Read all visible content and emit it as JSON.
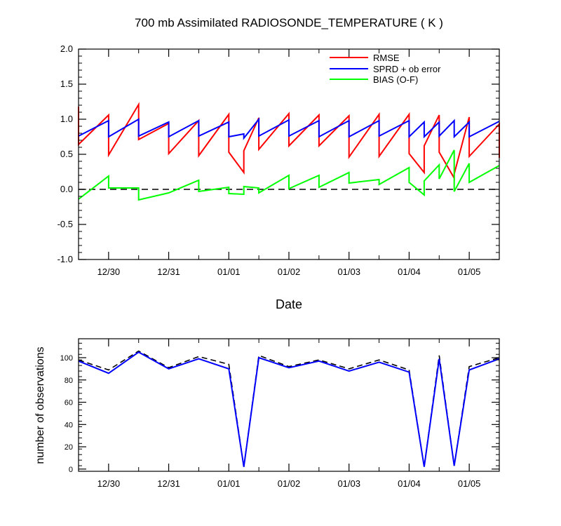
{
  "colors": {
    "rmse": "#ff0000",
    "sprd": "#0000ff",
    "bias": "#00ff00",
    "obs_used": "#0000ff",
    "obs_possible": "#000000",
    "zero_line": "#000000"
  },
  "chart_data": [
    {
      "type": "line",
      "title": "700 mb Assimilated RADIOSONDE_TEMPERATURE ( K )",
      "xlabel": "Date",
      "ylabel": "",
      "x_ticks": [
        "12/30",
        "12/31",
        "01/01",
        "01/02",
        "01/03",
        "01/04",
        "01/05"
      ],
      "x_tick_pos": [
        1,
        2,
        3,
        4,
        5,
        6,
        7
      ],
      "xlim": [
        0.5,
        7.5
      ],
      "ylim": [
        -1.0,
        2.0
      ],
      "y_ticks": [
        "-1.0",
        "-0.5",
        "0.0",
        "0.5",
        "1.0",
        "1.5",
        "2.0"
      ],
      "y_tick_vals": [
        -1.0,
        -0.5,
        0.0,
        0.5,
        1.0,
        1.5,
        2.0
      ],
      "reference_line": {
        "y": 0.0,
        "style": "dashed"
      },
      "legend_position": "top-right",
      "series": [
        {
          "name": "RMSE",
          "color_key": "rmse",
          "points": [
            [
              0.5,
              1.18
            ],
            [
              0.5,
              0.64
            ],
            [
              1.0,
              1.06
            ],
            [
              1.0,
              0.49
            ],
            [
              1.5,
              1.21
            ],
            [
              1.5,
              0.71
            ],
            [
              2.0,
              0.94
            ],
            [
              2.0,
              0.51
            ],
            [
              2.5,
              0.98
            ],
            [
              2.5,
              0.48
            ],
            [
              3.0,
              1.07
            ],
            [
              3.0,
              0.53
            ],
            [
              3.25,
              0.24
            ],
            [
              3.25,
              0.55
            ],
            [
              3.5,
              1.02
            ],
            [
              3.5,
              0.57
            ],
            [
              4.0,
              1.08
            ],
            [
              4.0,
              0.62
            ],
            [
              4.5,
              1.06
            ],
            [
              4.5,
              0.62
            ],
            [
              5.0,
              1.05
            ],
            [
              5.0,
              0.46
            ],
            [
              5.5,
              1.07
            ],
            [
              5.5,
              0.47
            ],
            [
              6.0,
              1.07
            ],
            [
              6.0,
              0.51
            ],
            [
              6.25,
              0.24
            ],
            [
              6.25,
              0.62
            ],
            [
              6.5,
              1.06
            ],
            [
              6.5,
              0.53
            ],
            [
              6.75,
              0.16
            ],
            [
              6.75,
              0.22
            ],
            [
              7.0,
              1.03
            ],
            [
              7.0,
              0.47
            ],
            [
              7.5,
              0.93
            ],
            [
              7.5,
              0.45
            ]
          ]
        },
        {
          "name": "SPRD + ob error",
          "color_key": "sprd",
          "points": [
            [
              0.5,
              0.76
            ],
            [
              1.0,
              0.98
            ],
            [
              1.0,
              0.75
            ],
            [
              1.5,
              1.0
            ],
            [
              1.5,
              0.76
            ],
            [
              2.0,
              0.96
            ],
            [
              2.0,
              0.75
            ],
            [
              2.5,
              0.98
            ],
            [
              2.5,
              0.76
            ],
            [
              3.0,
              0.96
            ],
            [
              3.0,
              0.75
            ],
            [
              3.25,
              0.79
            ],
            [
              3.25,
              0.73
            ],
            [
              3.5,
              1.0
            ],
            [
              3.5,
              0.76
            ],
            [
              4.0,
              0.99
            ],
            [
              4.0,
              0.76
            ],
            [
              4.5,
              0.98
            ],
            [
              4.5,
              0.75
            ],
            [
              5.0,
              0.98
            ],
            [
              5.0,
              0.75
            ],
            [
              5.5,
              0.98
            ],
            [
              5.5,
              0.76
            ],
            [
              6.0,
              0.98
            ],
            [
              6.0,
              0.75
            ],
            [
              6.25,
              0.96
            ],
            [
              6.25,
              0.75
            ],
            [
              6.5,
              0.96
            ],
            [
              6.5,
              0.76
            ],
            [
              6.75,
              0.98
            ],
            [
              6.75,
              0.75
            ],
            [
              7.0,
              0.96
            ],
            [
              7.0,
              0.75
            ],
            [
              7.5,
              0.97
            ]
          ]
        },
        {
          "name": "BIAS (O-F)",
          "color_key": "bias",
          "points": [
            [
              0.5,
              -0.14
            ],
            [
              1.0,
              0.19
            ],
            [
              1.0,
              0.02
            ],
            [
              1.5,
              0.02
            ],
            [
              1.5,
              -0.15
            ],
            [
              2.0,
              -0.05
            ],
            [
              2.5,
              0.13
            ],
            [
              2.5,
              -0.03
            ],
            [
              3.0,
              0.03
            ],
            [
              3.0,
              -0.06
            ],
            [
              3.25,
              -0.07
            ],
            [
              3.25,
              0.04
            ],
            [
              3.5,
              0.02
            ],
            [
              3.5,
              -0.05
            ],
            [
              4.0,
              0.2
            ],
            [
              4.0,
              0.01
            ],
            [
              4.5,
              0.2
            ],
            [
              4.5,
              0.03
            ],
            [
              5.0,
              0.24
            ],
            [
              5.0,
              0.09
            ],
            [
              5.5,
              0.14
            ],
            [
              5.5,
              0.07
            ],
            [
              6.0,
              0.31
            ],
            [
              6.0,
              0.1
            ],
            [
              6.25,
              -0.08
            ],
            [
              6.25,
              0.12
            ],
            [
              6.5,
              0.35
            ],
            [
              6.5,
              0.15
            ],
            [
              6.75,
              0.56
            ],
            [
              6.75,
              -0.03
            ],
            [
              7.0,
              0.37
            ],
            [
              7.0,
              0.1
            ],
            [
              7.5,
              0.34
            ]
          ]
        }
      ]
    },
    {
      "type": "line",
      "title": "",
      "xlabel": "",
      "ylabel": "number of observations",
      "x_ticks": [
        "12/30",
        "12/31",
        "01/01",
        "01/02",
        "01/03",
        "01/04",
        "01/05"
      ],
      "x_tick_pos": [
        1,
        2,
        3,
        4,
        5,
        6,
        7
      ],
      "xlim": [
        0.5,
        7.5
      ],
      "ylim": [
        -2,
        117
      ],
      "y_ticks": [
        "0",
        "20",
        "40",
        "60",
        "80",
        "100"
      ],
      "y_tick_vals": [
        0,
        20,
        40,
        60,
        80,
        100
      ],
      "series": [
        {
          "color_key": "obs_possible",
          "dashed": true,
          "x": [
            0.5,
            1.0,
            1.5,
            2.0,
            2.5,
            3.0,
            3.25,
            3.5,
            4.0,
            4.5,
            5.0,
            5.5,
            6.0,
            6.25,
            6.5,
            6.75,
            7.0,
            7.5
          ],
          "y": [
            98,
            89,
            106,
            91,
            101,
            94,
            2,
            102,
            92,
            98,
            90,
            98,
            89,
            2,
            102,
            3,
            92,
            100
          ]
        },
        {
          "color_key": "obs_used",
          "dashed": false,
          "x": [
            0.5,
            1.0,
            1.5,
            2.0,
            2.5,
            3.0,
            3.25,
            3.5,
            4.0,
            4.5,
            5.0,
            5.5,
            6.0,
            6.25,
            6.5,
            6.75,
            7.0,
            7.5
          ],
          "y": [
            97,
            86,
            105,
            90,
            99,
            90,
            2,
            100,
            91,
            97,
            88,
            96,
            87,
            2,
            99,
            3,
            89,
            99
          ]
        }
      ]
    }
  ]
}
